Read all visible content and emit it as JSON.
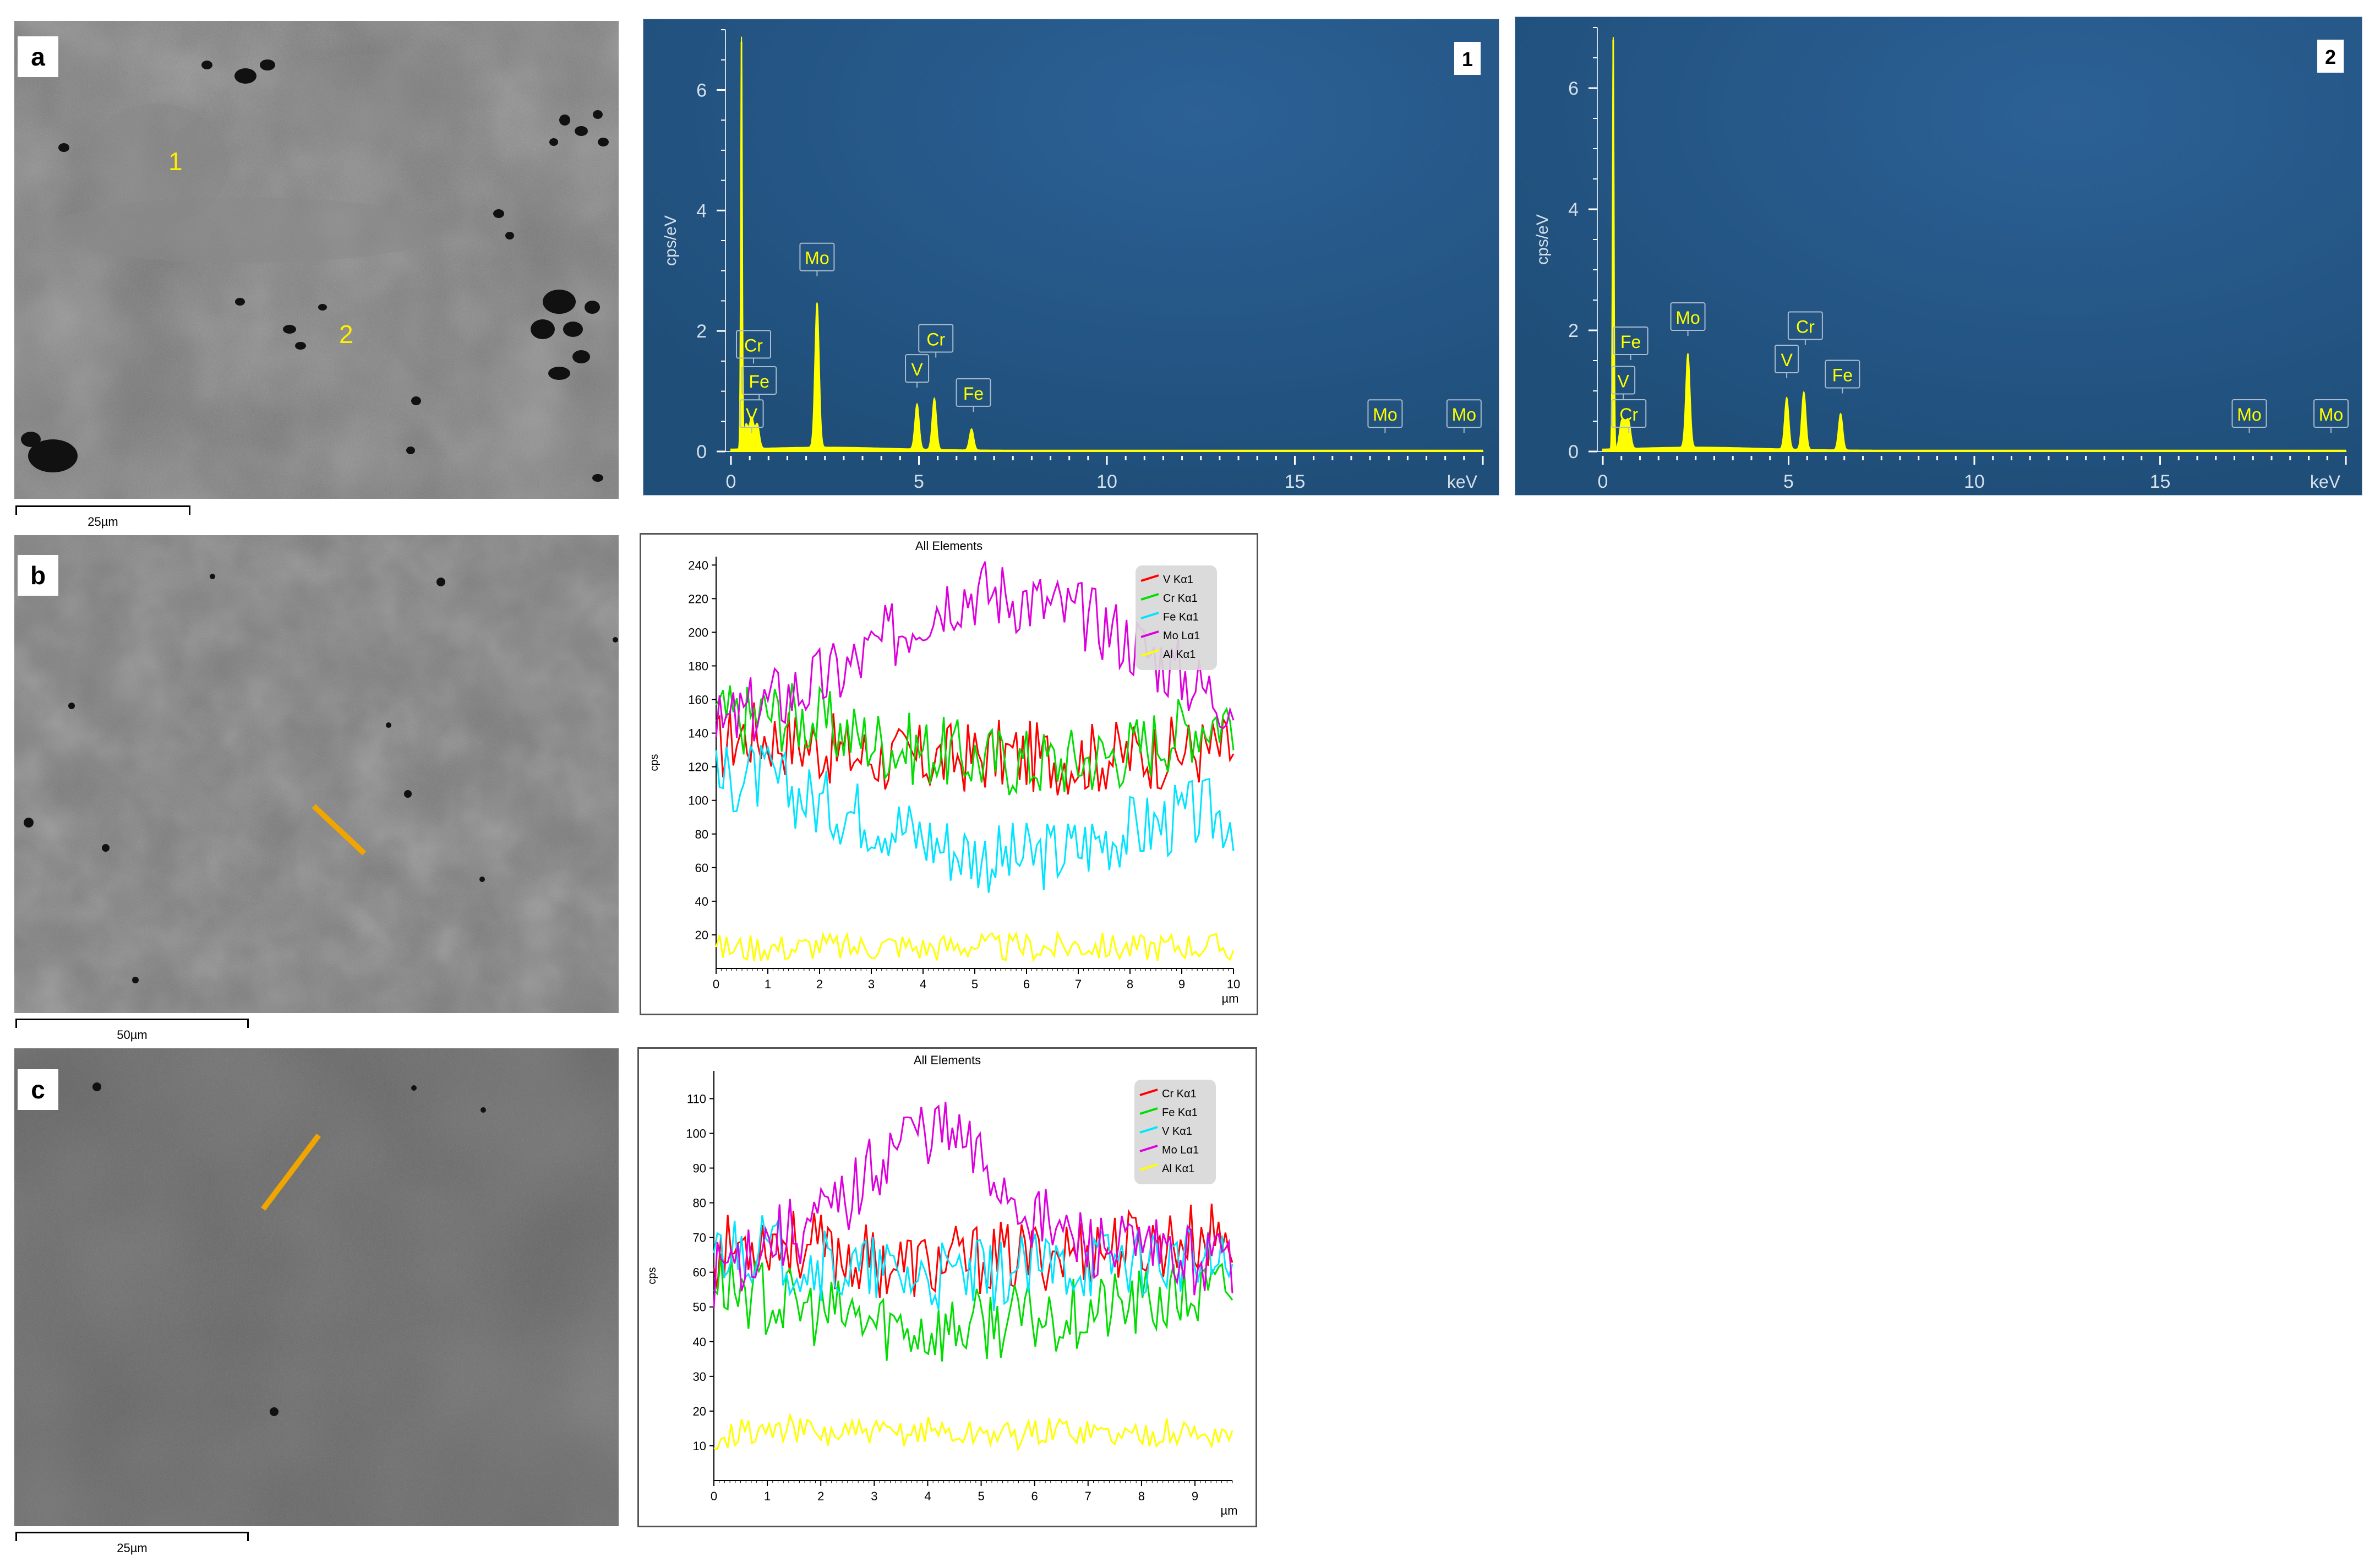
{
  "panels": {
    "a": {
      "letter": "a",
      "scale_label": "25µm",
      "point_labels": [
        "1",
        "2"
      ]
    },
    "b": {
      "letter": "b",
      "scale_label": "50µm"
    },
    "c": {
      "letter": "c",
      "scale_label": "25µm"
    }
  },
  "colors": {
    "eds_background": "#1f4e79",
    "eds_spectrum": "#ffff00",
    "line_marker": "#f0a500"
  },
  "chart_data": [
    {
      "id": "eds-spectrum-1",
      "type": "area",
      "corner_label": "1",
      "ylabel": "cps/eV",
      "xlabel": "keV",
      "xlim": [
        0,
        20
      ],
      "ylim": [
        0,
        7
      ],
      "x_ticks": [
        "0",
        "5",
        "10",
        "15"
      ],
      "y_ticks": [
        "0",
        "2",
        "4",
        "6"
      ],
      "peaks": [
        {
          "x": 0.28,
          "y": 6.8,
          "label": ""
        },
        {
          "x": 0.4,
          "y": 0.4,
          "label": "V"
        },
        {
          "x": 0.55,
          "y": 0.5,
          "label": "Cr"
        },
        {
          "x": 0.7,
          "y": 0.4,
          "label": "Fe"
        },
        {
          "x": 2.29,
          "y": 2.4,
          "label": "Mo"
        },
        {
          "x": 4.95,
          "y": 0.75,
          "label": "V"
        },
        {
          "x": 5.41,
          "y": 0.85,
          "label": "Cr"
        },
        {
          "x": 6.4,
          "y": 0.35,
          "label": "Fe"
        }
      ],
      "annotations": [
        {
          "text": "Cr",
          "x": 0.6,
          "y": 1.55
        },
        {
          "text": "Fe",
          "x": 0.75,
          "y": 0.95
        },
        {
          "text": "V",
          "x": 0.55,
          "y": 0.4
        },
        {
          "text": "Mo",
          "x": 2.29,
          "y": 3.0
        },
        {
          "text": "V",
          "x": 4.95,
          "y": 1.15
        },
        {
          "text": "Cr",
          "x": 5.45,
          "y": 1.65
        },
        {
          "text": "Fe",
          "x": 6.45,
          "y": 0.75
        },
        {
          "text": "Mo",
          "x": 17.4,
          "y": 0.4
        },
        {
          "text": "Mo",
          "x": 19.5,
          "y": 0.4
        }
      ]
    },
    {
      "id": "eds-spectrum-2",
      "type": "area",
      "corner_label": "2",
      "ylabel": "cps/eV",
      "xlabel": "keV",
      "xlim": [
        0,
        20
      ],
      "ylim": [
        0,
        7
      ],
      "x_ticks": [
        "0",
        "5",
        "10",
        "15"
      ],
      "y_ticks": [
        "0",
        "2",
        "4",
        "6"
      ],
      "peaks": [
        {
          "x": 0.28,
          "y": 6.8,
          "label": ""
        },
        {
          "x": 0.5,
          "y": 0.4,
          "label": "V"
        },
        {
          "x": 0.6,
          "y": 0.3,
          "label": "Cr"
        },
        {
          "x": 0.7,
          "y": 0.4,
          "label": "Fe"
        },
        {
          "x": 2.29,
          "y": 1.55,
          "label": "Mo"
        },
        {
          "x": 4.95,
          "y": 0.85,
          "label": "V"
        },
        {
          "x": 5.41,
          "y": 0.95,
          "label": "Cr"
        },
        {
          "x": 6.4,
          "y": 0.6,
          "label": "Fe"
        }
      ],
      "annotations": [
        {
          "text": "Fe",
          "x": 0.75,
          "y": 1.6
        },
        {
          "text": "V",
          "x": 0.55,
          "y": 0.95
        },
        {
          "text": "Cr",
          "x": 0.7,
          "y": 0.4
        },
        {
          "text": "Mo",
          "x": 2.29,
          "y": 2.0
        },
        {
          "text": "V",
          "x": 4.95,
          "y": 1.3
        },
        {
          "text": "Cr",
          "x": 5.45,
          "y": 1.85
        },
        {
          "text": "Fe",
          "x": 6.45,
          "y": 1.05
        },
        {
          "text": "Mo",
          "x": 17.4,
          "y": 0.4
        },
        {
          "text": "Mo",
          "x": 19.6,
          "y": 0.4
        }
      ]
    },
    {
      "id": "linescan-b",
      "type": "line",
      "title": "All Elements",
      "ylabel": "cps",
      "xlabel": "µm",
      "xlim": [
        0,
        10
      ],
      "ylim": [
        0,
        245
      ],
      "x_ticks": [
        "0",
        "1",
        "2",
        "3",
        "4",
        "5",
        "6",
        "7",
        "8",
        "9",
        "10"
      ],
      "y_ticks": [
        "20",
        "40",
        "60",
        "80",
        "100",
        "120",
        "140",
        "160",
        "180",
        "200",
        "220",
        "240"
      ],
      "legend_position": "top-right",
      "series": [
        {
          "name": "V Kα1",
          "color": "#ff0000",
          "values": [
            130,
            140,
            138,
            135,
            132,
            128,
            126,
            124,
            124,
            125,
            126,
            127,
            126,
            125,
            125,
            126,
            127,
            128,
            129,
            130,
            130
          ]
        },
        {
          "name": "Cr Kα1",
          "color": "#00dd00",
          "values": [
            150,
            148,
            152,
            150,
            146,
            140,
            136,
            132,
            130,
            128,
            125,
            124,
            123,
            123,
            124,
            126,
            130,
            136,
            142,
            148,
            150
          ]
        },
        {
          "name": "Fe Kα1",
          "color": "#00e5ff",
          "values": [
            110,
            115,
            112,
            105,
            98,
            95,
            90,
            85,
            78,
            72,
            68,
            65,
            66,
            68,
            72,
            78,
            82,
            85,
            90,
            92,
            90
          ]
        },
        {
          "name": "Mo Lα1",
          "color": "#dd00dd",
          "values": [
            140,
            150,
            158,
            165,
            170,
            178,
            188,
            200,
            212,
            222,
            225,
            223,
            220,
            215,
            210,
            205,
            195,
            185,
            175,
            165,
            160
          ]
        },
        {
          "name": "Al Kα1",
          "color": "#ffff00",
          "values": [
            12,
            12,
            13,
            12,
            14,
            12,
            13,
            14,
            12,
            13,
            14,
            12,
            13,
            12,
            14,
            13,
            12,
            13,
            14,
            13,
            12
          ]
        }
      ]
    },
    {
      "id": "linescan-c",
      "type": "line",
      "title": "All Elements",
      "ylabel": "cps",
      "xlabel": "µm",
      "xlim": [
        0,
        9.7
      ],
      "ylim": [
        0,
        118
      ],
      "x_ticks": [
        "0",
        "1",
        "2",
        "3",
        "4",
        "5",
        "6",
        "7",
        "8",
        "9"
      ],
      "y_ticks": [
        "10",
        "20",
        "30",
        "40",
        "50",
        "60",
        "70",
        "80",
        "90",
        "100",
        "110"
      ],
      "legend_position": "top-right",
      "series": [
        {
          "name": "Cr Kα1",
          "color": "#ff0000",
          "values": [
            65,
            68,
            70,
            68,
            66,
            64,
            63,
            62,
            62,
            63,
            64,
            64,
            65,
            66,
            67,
            68,
            68,
            69,
            70,
            70
          ]
        },
        {
          "name": "Fe Kα1",
          "color": "#00dd00",
          "values": [
            58,
            55,
            52,
            50,
            48,
            47,
            45,
            44,
            43,
            44,
            45,
            46,
            47,
            48,
            49,
            50,
            51,
            52,
            53,
            55
          ]
        },
        {
          "name": "V Kα1",
          "color": "#00e5ff",
          "values": [
            66,
            68,
            66,
            64,
            62,
            60,
            60,
            59,
            58,
            58,
            59,
            60,
            61,
            62,
            63,
            64,
            64,
            63,
            62,
            62
          ]
        },
        {
          "name": "Mo Lα1",
          "color": "#dd00dd",
          "values": [
            60,
            65,
            70,
            72,
            76,
            82,
            92,
            100,
            102,
            98,
            90,
            82,
            75,
            70,
            68,
            66,
            65,
            64,
            64,
            63
          ]
        },
        {
          "name": "Al Kα1",
          "color": "#ffff00",
          "values": [
            13,
            14,
            14,
            15,
            13,
            14,
            13,
            14,
            15,
            13,
            14,
            13,
            14,
            15,
            14,
            13,
            14,
            14,
            13,
            14
          ]
        }
      ]
    }
  ]
}
